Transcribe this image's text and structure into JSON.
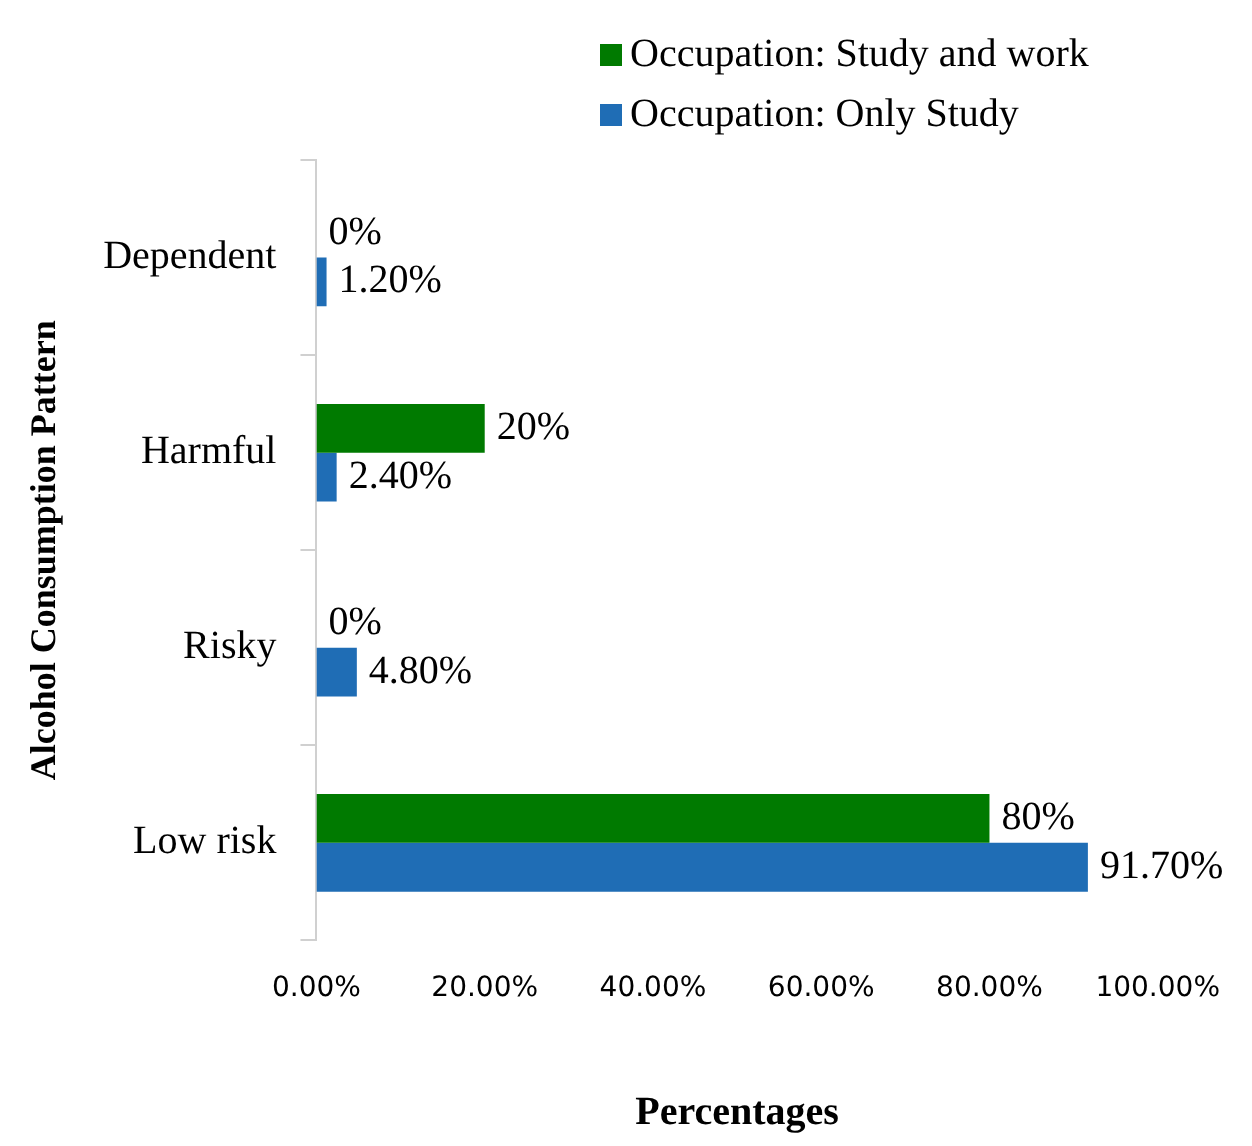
{
  "chart_data": {
    "type": "bar",
    "orientation": "horizontal",
    "xlabel": "Percentages",
    "ylabel": "Alcohol Consumption Pattern",
    "categories": [
      "Dependent",
      "Harmful",
      "Risky",
      "Low risk"
    ],
    "series": [
      {
        "name": "Occupation: Study and work",
        "color": "#007a00",
        "values": [
          0,
          20,
          0,
          80
        ],
        "value_labels": [
          "0%",
          "20%",
          "0%",
          "80%"
        ]
      },
      {
        "name": "Occupation: Only Study",
        "color": "#1f6db5",
        "values": [
          1.2,
          2.4,
          4.8,
          91.7
        ],
        "value_labels": [
          "1.20%",
          "2.40%",
          "4.80%",
          "91.70%"
        ]
      }
    ],
    "xlim": [
      0,
      100
    ],
    "xticks": [
      {
        "value": 0,
        "label": "0.00%"
      },
      {
        "value": 20,
        "label": "20.00%"
      },
      {
        "value": 40,
        "label": "40.00%"
      },
      {
        "value": 60,
        "label": "60.00%"
      },
      {
        "value": 80,
        "label": "80.00%"
      },
      {
        "value": 100,
        "label": "100.00%"
      }
    ],
    "grid": false,
    "legend": "top right"
  }
}
